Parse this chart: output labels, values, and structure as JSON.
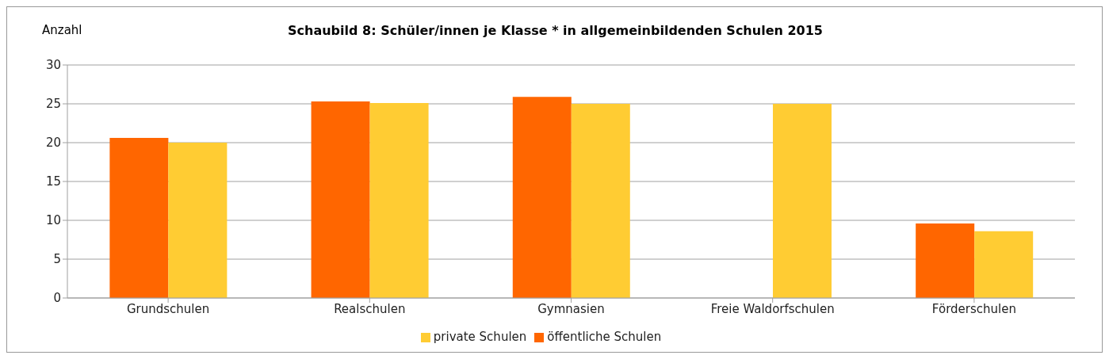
{
  "chart_data": {
    "type": "bar",
    "title": "Schaubild 8: Schüler/innen je Klasse * in allgemeinbildenden Schulen 2015",
    "ylabel": "Anzahl",
    "categories": [
      "Grundschulen",
      "Realschulen",
      "Gymnasien",
      "Freie Waldorfschulen",
      "Förderschulen"
    ],
    "series": [
      {
        "name": "öffentliche Schulen",
        "color": "#ff6600",
        "values": [
          20.6,
          25.3,
          25.9,
          null,
          9.6
        ]
      },
      {
        "name": "private Schulen",
        "color": "#ffcc33",
        "values": [
          20.0,
          25.1,
          25.0,
          25.0,
          8.6
        ]
      }
    ],
    "ylim": [
      0,
      30
    ],
    "yticks": [
      0,
      5,
      10,
      15,
      20,
      25,
      30
    ],
    "grid": "y",
    "legend": "bottom"
  }
}
